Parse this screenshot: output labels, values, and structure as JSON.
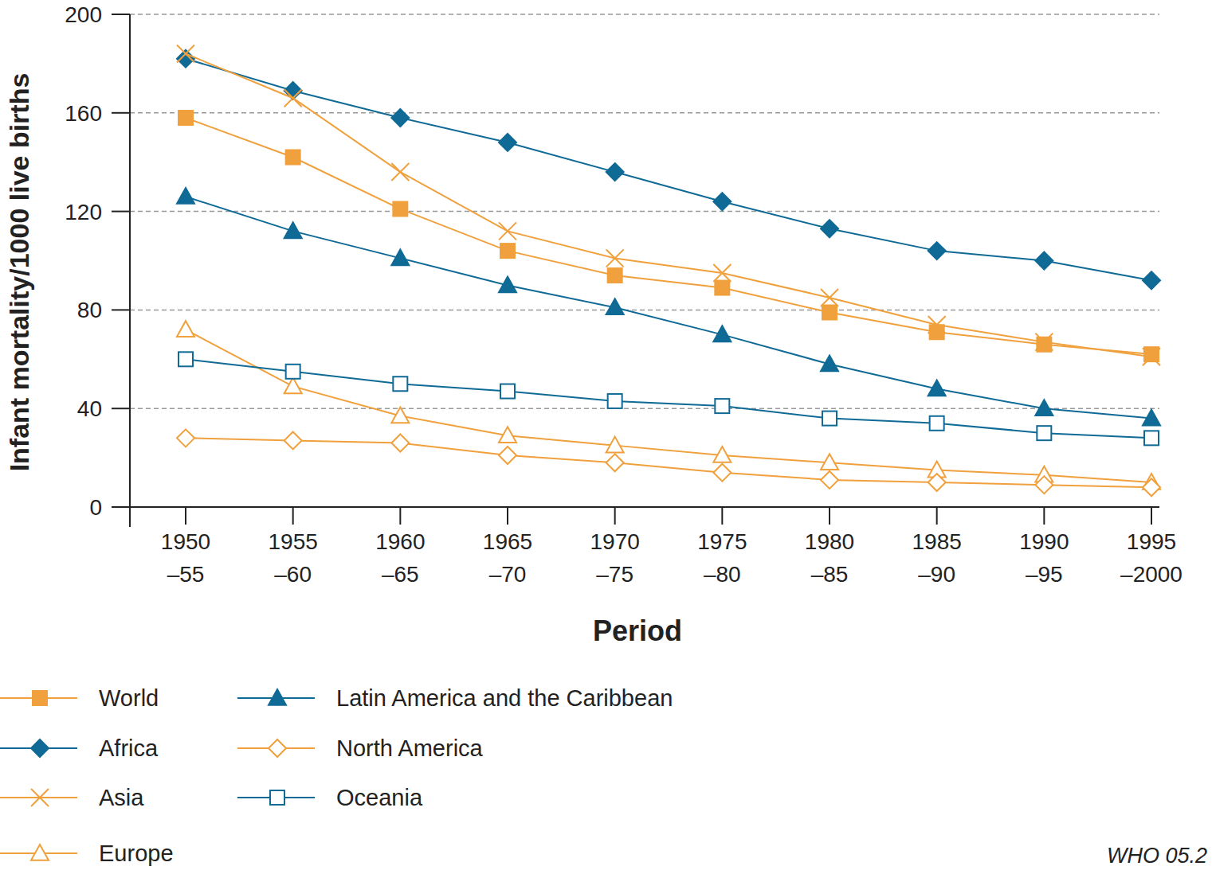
{
  "chart_data": {
    "type": "line",
    "y_label": "Infant mortality/1000 live births",
    "x_label": "Period",
    "annotation": "WHO 05.2",
    "categories": [
      "1950\n–55",
      "1955\n–60",
      "1960\n–65",
      "1965\n–70",
      "1970\n–75",
      "1975\n–80",
      "1980\n–85",
      "1985\n–90",
      "1990\n–95",
      "1995\n–2000"
    ],
    "ylim": [
      0,
      200
    ],
    "yticks": [
      0,
      40,
      80,
      120,
      160,
      200
    ],
    "grid": true,
    "legend": "bottom",
    "series": [
      {
        "name": "World",
        "color": "#f0a03c",
        "marker": "square-filled",
        "values": [
          158,
          142,
          121,
          104,
          94,
          89,
          79,
          71,
          66,
          62
        ]
      },
      {
        "name": "Africa",
        "color": "#0f6a96",
        "marker": "diamond-filled",
        "values": [
          182,
          169,
          158,
          148,
          136,
          124,
          113,
          104,
          100,
          92
        ]
      },
      {
        "name": "Asia",
        "color": "#f0a03c",
        "marker": "x",
        "values": [
          184,
          166,
          136,
          112,
          101,
          95,
          85,
          74,
          67,
          61
        ]
      },
      {
        "name": "Europe",
        "color": "#f0a03c",
        "marker": "triangle-open",
        "values": [
          72,
          49,
          37,
          29,
          25,
          21,
          18,
          15,
          13,
          10
        ]
      },
      {
        "name": "Latin America and the Caribbean",
        "color": "#0f6a96",
        "marker": "triangle-filled",
        "values": [
          126,
          112,
          101,
          90,
          81,
          70,
          58,
          48,
          40,
          36
        ]
      },
      {
        "name": "North America",
        "color": "#f0a03c",
        "marker": "diamond-open",
        "values": [
          28,
          27,
          26,
          21,
          18,
          14,
          11,
          10,
          9,
          8
        ]
      },
      {
        "name": "Oceania",
        "color": "#0f6a96",
        "marker": "square-open",
        "values": [
          60,
          55,
          50,
          47,
          43,
          41,
          36,
          34,
          30,
          28
        ]
      }
    ]
  }
}
